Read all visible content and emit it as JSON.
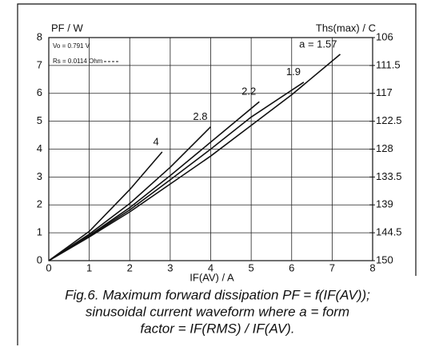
{
  "chart_data": {
    "type": "line",
    "y_label": "PF / W",
    "y2_label": "Ths(max) / C",
    "x_label": "IF(AV) / A",
    "annotations": [
      "Vo = 0.791 V",
      "Rs = 0.0114 Ohm"
    ],
    "caption": [
      "Fig.6.  Maximum forward dissipation PF = f(IF(AV));",
      "sinusoidal current waveform where a = form",
      "factor = IF(RMS) / IF(AV)."
    ],
    "xlim": [
      0,
      8
    ],
    "xticks": [
      0,
      1,
      2,
      3,
      4,
      5,
      6,
      7,
      8
    ],
    "ylim": [
      0,
      8
    ],
    "yticks": [
      0,
      1,
      2,
      3,
      4,
      5,
      6,
      7,
      8
    ],
    "y2lim": [
      150,
      106
    ],
    "y2ticks": [
      106,
      111.5,
      117,
      122.5,
      128,
      133.5,
      139,
      144.5,
      150
    ],
    "grid": true,
    "series": [
      {
        "name": "a = 1.57",
        "color": "#111111",
        "x": [
          0,
          1,
          2,
          3,
          4,
          5,
          6,
          7.2
        ],
        "values": [
          0,
          0.85,
          1.75,
          2.75,
          3.75,
          4.85,
          5.95,
          7.4
        ]
      },
      {
        "name": "1.9",
        "color": "#111111",
        "x": [
          0,
          1,
          2,
          3,
          4,
          5,
          6.3
        ],
        "values": [
          0,
          0.88,
          1.82,
          2.9,
          4.0,
          5.15,
          6.4
        ]
      },
      {
        "name": "2.2",
        "color": "#111111",
        "x": [
          0,
          1,
          2,
          3,
          4,
          5.2
        ],
        "values": [
          0,
          0.9,
          1.9,
          3.05,
          4.25,
          5.7
        ]
      },
      {
        "name": "2.8",
        "color": "#111111",
        "x": [
          0,
          1,
          2,
          3,
          4
        ],
        "values": [
          0,
          0.95,
          2.05,
          3.35,
          4.8
        ]
      },
      {
        "name": "4",
        "color": "#111111",
        "x": [
          0,
          1,
          2,
          2.8
        ],
        "values": [
          0,
          1.05,
          2.55,
          3.9
        ]
      }
    ]
  }
}
